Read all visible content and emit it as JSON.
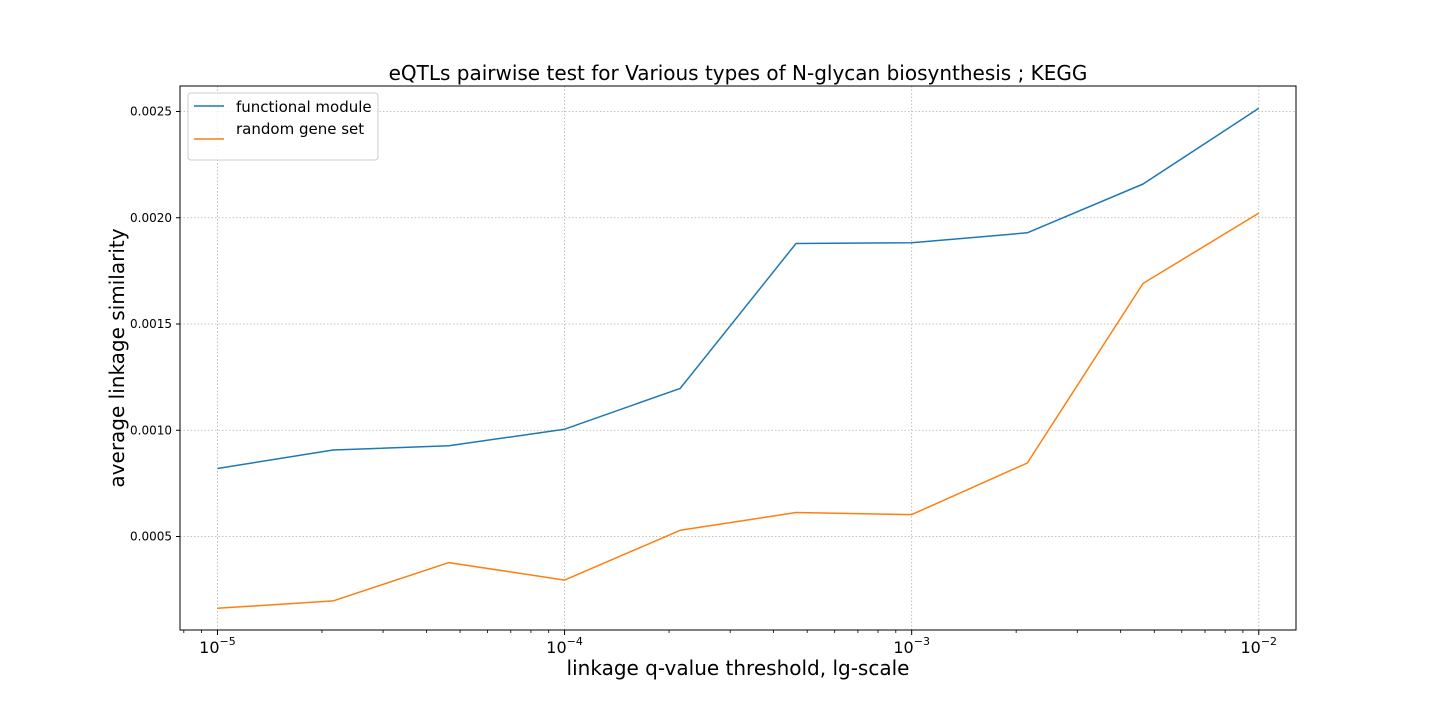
{
  "chart_data": {
    "type": "line",
    "title": "eQTLs pairwise test for Various types of N-glycan biosynthesis ; KEGG",
    "xlabel": "linkage q-value threshold, lg-scale",
    "ylabel": "average linkage similarity",
    "x_scale": "log",
    "xlim": [
      7.8e-06,
      0.0128
    ],
    "ylim": [
      6e-05,
      0.00262
    ],
    "grid": true,
    "legend_position": "top-left",
    "x": [
      1e-05,
      2.154e-05,
      4.642e-05,
      0.0001,
      0.0002154,
      0.0004642,
      0.001,
      0.002154,
      0.004642,
      0.01
    ],
    "series": [
      {
        "name": "functional module",
        "color": "#1f77b4",
        "values": [
          0.00082,
          0.000907,
          0.000927,
          0.001005,
          0.001197,
          0.001879,
          0.001882,
          0.001929,
          0.002159,
          0.002515
        ]
      },
      {
        "name": "random gene set",
        "color": "#ff7f0e",
        "values": [
          0.000162,
          0.000197,
          0.000377,
          0.000295,
          0.000529,
          0.000613,
          0.000603,
          0.000846,
          0.001691,
          0.002022
        ]
      }
    ],
    "y_ticks": [
      {
        "value": 0.0005,
        "label": "0.0005"
      },
      {
        "value": 0.001,
        "label": "0.0010"
      },
      {
        "value": 0.0015,
        "label": "0.0015"
      },
      {
        "value": 0.002,
        "label": "0.0020"
      },
      {
        "value": 0.0025,
        "label": "0.0025"
      }
    ],
    "x_ticks": [
      {
        "value": 1e-05,
        "base": "10",
        "exp": "−5"
      },
      {
        "value": 0.0001,
        "base": "10",
        "exp": "−4"
      },
      {
        "value": 0.001,
        "base": "10",
        "exp": "−3"
      },
      {
        "value": 0.01,
        "base": "10",
        "exp": "−2"
      }
    ]
  }
}
